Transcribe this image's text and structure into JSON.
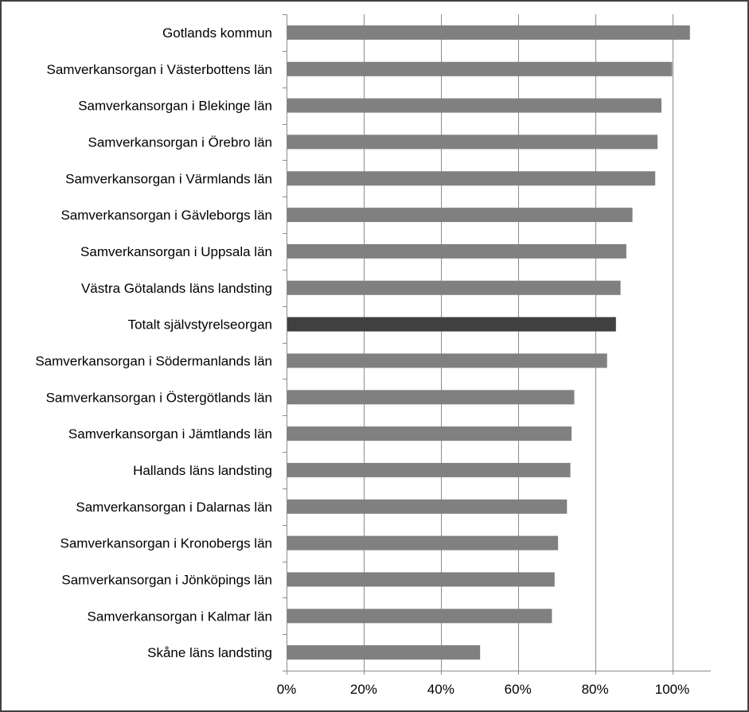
{
  "chart_data": {
    "type": "bar",
    "orientation": "horizontal",
    "title": "",
    "xlabel": "",
    "ylabel": "",
    "categories": [
      "Gotlands kommun",
      "Samverkansorgan i Västerbottens län",
      "Samverkansorgan i Blekinge län",
      "Samverkansorgan i Örebro län",
      "Samverkansorgan i Värmlands län",
      "Samverkansorgan i Gävleborgs län",
      "Samverkansorgan i Uppsala län",
      "Västra Götalands läns landsting",
      "Totalt självstyrelseorgan",
      "Samverkansorgan i Södermanlands län",
      "Samverkansorgan i Östergötlands län",
      "Samverkansorgan i Jämtlands län",
      "Hallands läns landsting",
      "Samverkansorgan i Dalarnas län",
      "Samverkansorgan i Kronobergs län",
      "Samverkansorgan i Jönköpings län",
      "Samverkansorgan i Kalmar län",
      "Skåne läns landsting"
    ],
    "values": [
      104.6,
      100.0,
      97.2,
      96.2,
      95.6,
      89.7,
      88.1,
      86.6,
      85.4,
      83.1,
      74.6,
      73.9,
      73.6,
      72.7,
      70.4,
      69.5,
      68.8,
      50.2
    ],
    "highlight_category": "Totalt självstyrelseorgan",
    "xlim": [
      0,
      110
    ],
    "x_ticks": [
      0,
      20,
      40,
      60,
      80,
      100
    ],
    "x_tick_labels": [
      "0%",
      "20%",
      "40%",
      "60%",
      "80%",
      "100%"
    ],
    "value_unit": "%",
    "grid": "vertical",
    "legend": "none",
    "colors": {
      "bar": "#808080",
      "highlight_bar": "#404040",
      "gridline": "#8c8c8c",
      "axis": "#8c8c8c"
    }
  }
}
